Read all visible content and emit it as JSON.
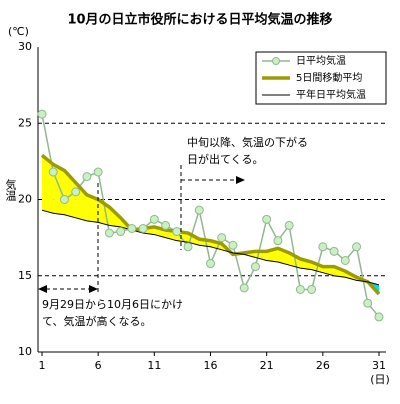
{
  "chart_data": {
    "type": "line",
    "title": "10月の日立市役所における日平均気温の推移",
    "y_unit": "(℃)",
    "y_label": "気温",
    "x_unit": "(日)",
    "x": [
      1,
      2,
      3,
      4,
      5,
      6,
      7,
      8,
      9,
      10,
      11,
      12,
      13,
      14,
      15,
      16,
      17,
      18,
      19,
      20,
      21,
      22,
      23,
      24,
      25,
      26,
      27,
      28,
      29,
      30,
      31
    ],
    "xlim": [
      1,
      31
    ],
    "xticks": [
      1,
      6,
      11,
      16,
      21,
      26,
      31
    ],
    "ylim": [
      10,
      30
    ],
    "yticks": [
      10,
      15,
      20,
      25,
      30
    ],
    "grid": true,
    "legend": "upper right",
    "above_color": "#ffff00",
    "below_color": "#00e0e8",
    "series": [
      {
        "name": "日平均気温",
        "color": "#90b890",
        "marker_color": "#c8f0c0",
        "values": [
          25.6,
          21.8,
          20.0,
          20.5,
          21.5,
          21.8,
          17.8,
          17.9,
          18.1,
          18.1,
          18.7,
          18.3,
          17.9,
          16.9,
          19.3,
          15.8,
          17.5,
          17.0,
          14.2,
          15.6,
          18.7,
          17.3,
          18.3,
          14.1,
          14.1,
          16.9,
          16.6,
          16.0,
          16.9,
          13.2,
          12.3
        ]
      },
      {
        "name": "5日間移動平均",
        "color": "#9c9c00",
        "values": [
          22.9,
          22.3,
          21.9,
          21.1,
          20.3,
          20.0,
          19.5,
          18.8,
          18.0,
          18.1,
          18.2,
          18.0,
          17.9,
          17.8,
          17.4,
          17.3,
          17.1,
          16.4,
          16.5,
          16.6,
          16.6,
          16.8,
          16.5,
          16.1,
          15.9,
          15.6,
          15.6,
          15.3,
          14.9,
          14.6,
          13.8
        ]
      },
      {
        "name": "平年日平均気温",
        "color": "#000000",
        "values": [
          19.3,
          19.1,
          19.0,
          18.8,
          18.6,
          18.5,
          18.3,
          18.2,
          18.0,
          17.8,
          17.7,
          17.5,
          17.3,
          17.2,
          17.0,
          16.9,
          16.7,
          16.5,
          16.4,
          16.2,
          16.0,
          15.9,
          15.7,
          15.5,
          15.4,
          15.2,
          15.0,
          14.9,
          14.7,
          14.6,
          14.4
        ]
      }
    ],
    "annotations": [
      {
        "lines": [
          "中旬以降、気温の下がる",
          "日が出てくる。"
        ]
      },
      {
        "lines": [
          "9月29日から10月6日にかけ",
          "て、気温が高くなる。"
        ]
      }
    ]
  }
}
